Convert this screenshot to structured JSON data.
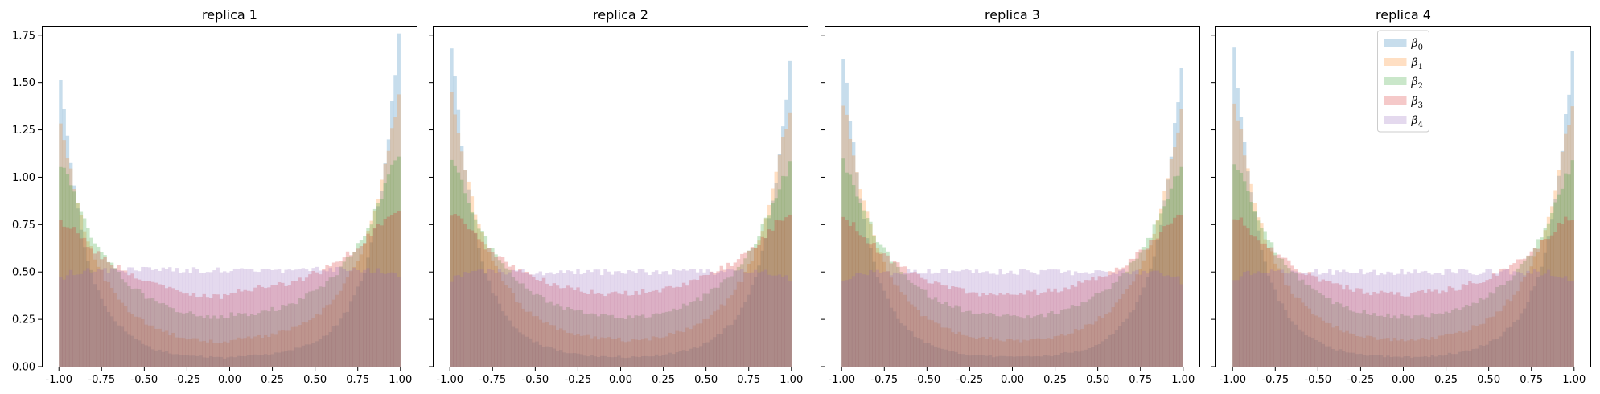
{
  "chart_data": {
    "type": "histogram",
    "shared_y": true,
    "xlim": [
      -1.1,
      1.1
    ],
    "ylim": [
      0,
      1.8
    ],
    "x_ticks": [
      -1.0,
      -0.75,
      -0.5,
      -0.25,
      0.0,
      0.25,
      0.5,
      0.75,
      1.0
    ],
    "x_tick_labels": [
      "-1.00",
      "-0.75",
      "-0.50",
      "-0.25",
      "0.00",
      "0.25",
      "0.50",
      "0.75",
      "1.00"
    ],
    "y_ticks": [
      0,
      0.25,
      0.5,
      0.75,
      1.0,
      1.25,
      1.5,
      1.75
    ],
    "y_tick_labels": [
      "0.00",
      "0.25",
      "0.50",
      "0.75",
      "1.00",
      "1.25",
      "1.50",
      "1.75"
    ],
    "bin_range": [
      -1.0,
      1.0
    ],
    "bin_count": 100,
    "series_opacity": 0.25,
    "legend_panel": 3,
    "legend_placement": "upper center",
    "series": [
      {
        "base": "β",
        "sub": "0",
        "color": "#1f77b4",
        "peak_strength": 3.6
      },
      {
        "base": "β",
        "sub": "1",
        "color": "#ff7f0e",
        "peak_strength": 2.4
      },
      {
        "base": "β",
        "sub": "2",
        "color": "#2ca02c",
        "peak_strength": 1.5
      },
      {
        "base": "β",
        "sub": "3",
        "color": "#d62728",
        "peak_strength": 0.8
      },
      {
        "base": "β",
        "sub": "4",
        "color": "#9467bd",
        "peak_strength": 0.0
      }
    ],
    "panels": [
      {
        "title": "replica 1",
        "left_peaks": [
          1.52,
          1.3,
          1.1,
          0.8,
          0.43
        ],
        "right_peaks": [
          1.72,
          1.46,
          1.16,
          0.87,
          0.44
        ],
        "flat_level": 0.51
      },
      {
        "title": "replica 2",
        "left_peaks": [
          1.68,
          1.46,
          1.12,
          0.83,
          0.44
        ],
        "right_peaks": [
          1.6,
          1.38,
          1.1,
          0.84,
          0.44
        ],
        "flat_level": 0.5
      },
      {
        "title": "replica 3",
        "left_peaks": [
          1.64,
          1.42,
          1.12,
          0.81,
          0.44
        ],
        "right_peaks": [
          1.58,
          1.37,
          1.1,
          0.83,
          0.44
        ],
        "flat_level": 0.5
      },
      {
        "title": "replica 4",
        "left_peaks": [
          1.66,
          1.43,
          1.12,
          0.82,
          0.44
        ],
        "right_peaks": [
          1.63,
          1.4,
          1.1,
          0.83,
          0.44
        ],
        "flat_level": 0.5
      }
    ]
  }
}
